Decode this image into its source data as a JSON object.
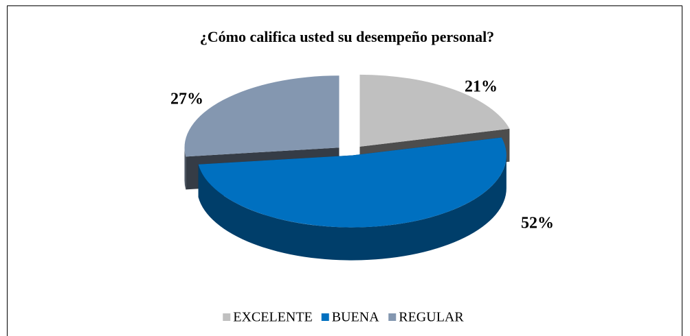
{
  "chart_data": {
    "type": "pie",
    "title": "¿Cómo califica usted su desempeño personal?",
    "categories": [
      "EXCELENTE",
      "BUENA",
      "REGULAR"
    ],
    "values": [
      21,
      52,
      27
    ],
    "value_labels": [
      "21%",
      "52%",
      "27%"
    ],
    "colors": [
      "#c0c0c0",
      "#0070c0",
      "#8497b0"
    ],
    "legend": "bottom"
  }
}
